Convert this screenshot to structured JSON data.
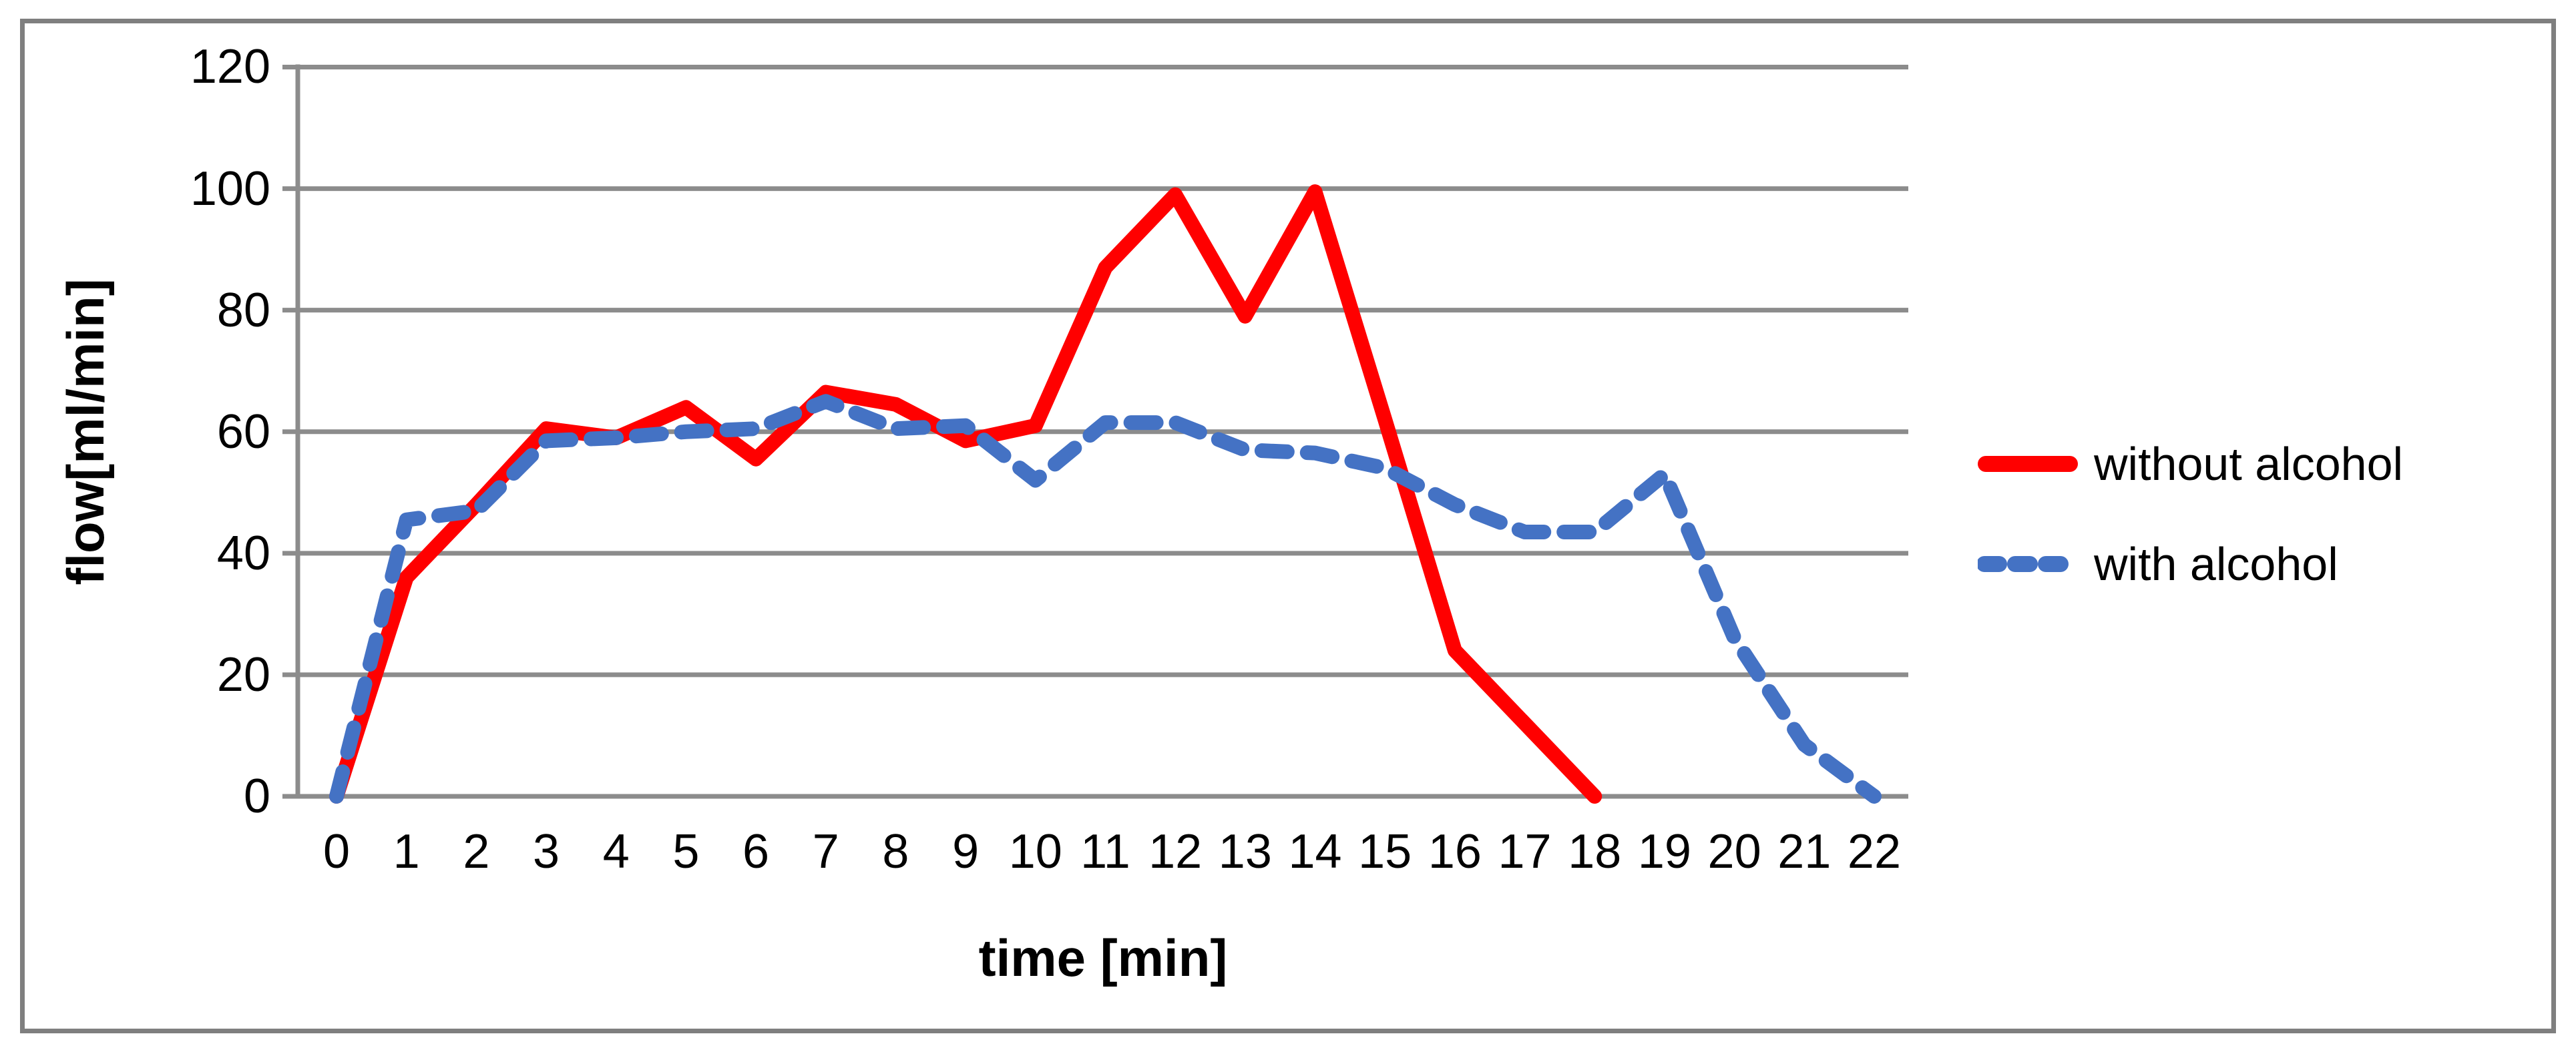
{
  "chart_data": {
    "type": "line",
    "title": "",
    "xlabel": "time [min]",
    "ylabel": "flow[ml/min]",
    "x_ticks": [
      0,
      1,
      2,
      3,
      4,
      5,
      6,
      7,
      8,
      9,
      10,
      11,
      12,
      13,
      14,
      15,
      16,
      17,
      18,
      19,
      20,
      21,
      22
    ],
    "y_ticks": [
      0,
      20,
      40,
      60,
      80,
      100,
      120
    ],
    "ylim": [
      0,
      120
    ],
    "xlim": [
      0,
      22
    ],
    "grid": "horizontal",
    "legend_position": "right",
    "series": [
      {
        "name": "without alcohol",
        "color": "#ff0000",
        "style": "solid",
        "x": [
          0,
          1,
          2,
          3,
          4,
          5,
          6,
          7,
          8,
          9,
          10,
          11,
          12,
          13,
          14,
          15,
          16,
          17,
          18
        ],
        "values": [
          0,
          36,
          48,
          60.5,
          59,
          64,
          55.5,
          66.5,
          64.5,
          58.5,
          61,
          87,
          99,
          79,
          99.5,
          62,
          24,
          12,
          0
        ]
      },
      {
        "name": "with alcohol",
        "color": "#4472c4",
        "style": "dashed",
        "x": [
          0,
          1,
          2,
          3,
          4,
          5,
          6,
          7,
          8,
          9,
          10,
          11,
          12,
          13,
          14,
          15,
          16,
          17,
          18,
          19,
          20,
          21,
          22
        ],
        "values": [
          0,
          45.5,
          47,
          58.5,
          59,
          60,
          60.5,
          65,
          60.5,
          61,
          52,
          61.5,
          61.5,
          57,
          56.5,
          54,
          48,
          43.5,
          43.5,
          53,
          26,
          8.5,
          0
        ]
      }
    ]
  },
  "axes": {
    "x_title": "time [min]",
    "y_title": "flow[ml/min]"
  },
  "legend": {
    "items": [
      {
        "label": "without alcohol"
      },
      {
        "label": "with alcohol"
      }
    ]
  },
  "colors": {
    "series_without_alcohol": "#ff0000",
    "series_with_alcohol": "#4472c4",
    "gridline": "#8c8c8c",
    "axis": "#8c8c8c",
    "frame": "#7f7f7f",
    "text": "#000000"
  }
}
